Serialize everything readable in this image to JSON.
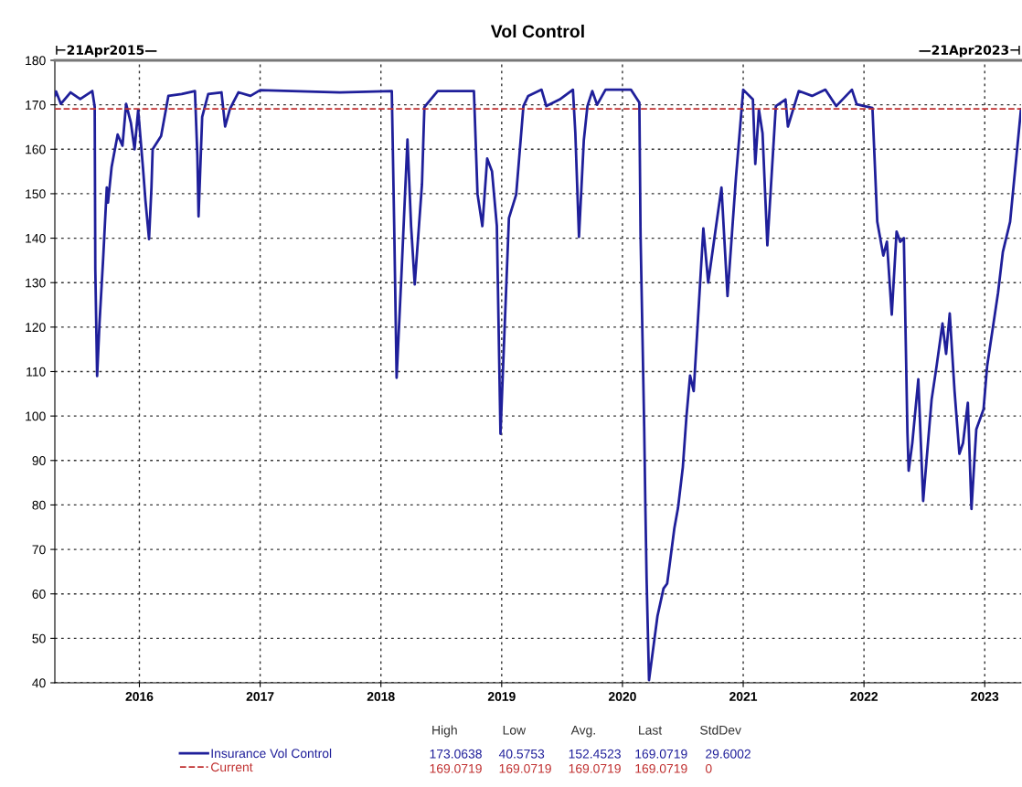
{
  "chart_data": {
    "type": "line",
    "title": "Vol Control",
    "x": [
      2015.3,
      2015.31,
      2015.35,
      2015.43,
      2015.51,
      2015.61,
      2015.63,
      2015.635,
      2015.65,
      2015.67,
      2015.7,
      2015.73,
      2015.74,
      2015.77,
      2015.82,
      2015.86,
      2015.89,
      2015.93,
      2015.96,
      2015.99,
      2016.03,
      2016.05,
      2016.08,
      2016.1,
      2016.11,
      2016.18,
      2016.24,
      2016.35,
      2016.46,
      2016.48,
      2016.49,
      2016.52,
      2016.57,
      2016.68,
      2016.71,
      2016.75,
      2016.82,
      2016.92,
      2017.0,
      2017.66,
      2018.09,
      2018.11,
      2018.13,
      2018.17,
      2018.22,
      2018.25,
      2018.28,
      2018.34,
      2018.36,
      2018.47,
      2018.77,
      2018.8,
      2018.84,
      2018.88,
      2018.92,
      2018.96,
      2018.99,
      2019.06,
      2019.12,
      2019.18,
      2019.22,
      2019.33,
      2019.37,
      2019.48,
      2019.59,
      2019.61,
      2019.64,
      2019.68,
      2019.71,
      2019.75,
      2019.79,
      2019.86,
      2020.07,
      2020.14,
      2020.15,
      2020.18,
      2020.19,
      2020.2,
      2020.22,
      2020.29,
      2020.34,
      2020.37,
      2020.39,
      2020.43,
      2020.46,
      2020.5,
      2020.53,
      2020.56,
      2020.59,
      2020.67,
      2020.71,
      2020.82,
      2020.87,
      2020.94,
      2021.0,
      2021.08,
      2021.1,
      2021.13,
      2021.16,
      2021.2,
      2021.27,
      2021.35,
      2021.37,
      2021.46,
      2021.57,
      2021.68,
      2021.77,
      2021.9,
      2021.94,
      2022.07,
      2022.11,
      2022.16,
      2022.19,
      2022.23,
      2022.27,
      2022.3,
      2022.33,
      2022.36,
      2022.37,
      2022.4,
      2022.45,
      2022.49,
      2022.56,
      2022.6,
      2022.65,
      2022.68,
      2022.71,
      2022.75,
      2022.79,
      2022.82,
      2022.86,
      2022.89,
      2022.93,
      2022.99,
      2023.02,
      2023.11,
      2023.15,
      2023.21,
      2023.3
    ],
    "series": [
      {
        "name": "Insurance Vol Control",
        "color": "#1f1f9a",
        "values": [
          172,
          173,
          170.2,
          172.8,
          171.3,
          173.1,
          169.5,
          133,
          109,
          121,
          135.4,
          151.4,
          148,
          156,
          163.3,
          160.8,
          170.2,
          165.9,
          160,
          168.8,
          155.7,
          148.5,
          139.8,
          151.4,
          160,
          163,
          172,
          172.4,
          173.1,
          158.6,
          144.9,
          167.3,
          172.4,
          172.8,
          165.1,
          169.1,
          172.8,
          172,
          173.3,
          172.8,
          173.1,
          142.7,
          108.6,
          131.8,
          162.2,
          142.7,
          129.6,
          152.1,
          169.5,
          173.1,
          173.1,
          149.9,
          142.7,
          157.9,
          155,
          142.7,
          96,
          144.5,
          149.8,
          169.7,
          172,
          173.4,
          169.7,
          171.2,
          173.4,
          163.6,
          140.3,
          162,
          169.7,
          173.1,
          170,
          173.4,
          173.4,
          170.5,
          140.7,
          97.6,
          79.3,
          63.4,
          40.6,
          55,
          61.2,
          62.3,
          66.4,
          74.8,
          79.3,
          88.5,
          99.9,
          109.1,
          105.6,
          142.2,
          130,
          151.4,
          127,
          153.7,
          173.4,
          171.2,
          156.7,
          168.9,
          163.6,
          138.4,
          169.7,
          171.2,
          165.1,
          173.1,
          172,
          173.4,
          169.7,
          173.4,
          170.1,
          169.3,
          143.7,
          136.1,
          139.2,
          122.8,
          141.5,
          139.2,
          140,
          96.1,
          87.7,
          93.9,
          108.3,
          80.9,
          103.7,
          111,
          120.8,
          114,
          123.1,
          105.6,
          91.5,
          93.9,
          103,
          79.1,
          97,
          101.5,
          111.3,
          127.7,
          136.9,
          143.7,
          169
        ]
      }
    ],
    "ref_lines": [
      {
        "axis": "y",
        "value": 169.0719,
        "label": "Current",
        "color": "#c03030",
        "line_style": "dashed"
      }
    ],
    "xlim": [
      2015.3,
      2023.3
    ],
    "xticks": [
      2016,
      2017,
      2018,
      2019,
      2020,
      2021,
      2022,
      2023
    ],
    "ylim": [
      40,
      180
    ],
    "yticks": [
      40,
      50,
      60,
      70,
      80,
      90,
      100,
      110,
      120,
      130,
      140,
      150,
      160,
      170,
      180
    ],
    "grid": true,
    "legend": "bottom",
    "line_style": "solid",
    "marker": "none",
    "annotations": [
      "⊢21Apr2015—",
      "—21Apr2023⊣",
      "High",
      "Low",
      "Avg.",
      "Last",
      "StdDev",
      "173.0638",
      "40.5753",
      "152.4523",
      "169.0719",
      "29.6002",
      "169.0719",
      "169.0719",
      "169.0719",
      "169.0719",
      "0"
    ]
  }
}
